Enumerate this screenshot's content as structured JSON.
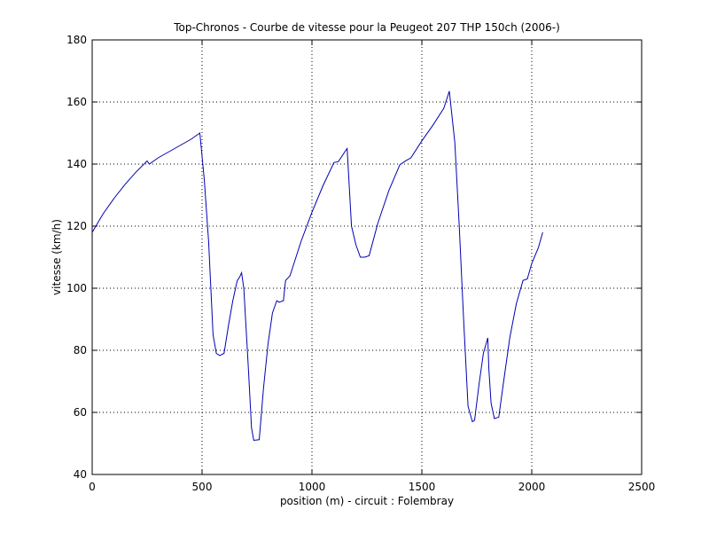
{
  "chart_data": {
    "type": "line",
    "title": "Top-Chronos - Courbe de vitesse pour la Peugeot 207 THP 150ch (2006-)",
    "xlabel": "position (m) - circuit : Folembray",
    "ylabel": "vitesse (km/h)",
    "xlim": [
      0,
      2500
    ],
    "ylim": [
      40,
      180
    ],
    "xticks": [
      0,
      500,
      1000,
      1500,
      2000,
      2500
    ],
    "yticks": [
      40,
      60,
      80,
      100,
      120,
      140,
      160,
      180
    ],
    "grid": true,
    "line_color": "#0000b3",
    "series": [
      {
        "x": [
          0,
          50,
          100,
          150,
          200,
          250,
          260,
          300,
          350,
          400,
          450,
          490,
          510,
          530,
          550,
          565,
          580,
          600,
          620,
          640,
          660,
          670,
          680,
          690,
          710,
          725,
          735,
          760,
          780,
          800,
          820,
          840,
          850,
          870,
          880,
          900,
          950,
          1000,
          1050,
          1100,
          1120,
          1150,
          1160,
          1180,
          1200,
          1220,
          1240,
          1260,
          1300,
          1350,
          1400,
          1430,
          1450,
          1500,
          1550,
          1600,
          1625,
          1650,
          1670,
          1690,
          1710,
          1730,
          1740,
          1760,
          1780,
          1800,
          1805,
          1815,
          1830,
          1850,
          1870,
          1900,
          1930,
          1960,
          1980,
          2000,
          2030,
          2050
        ],
        "y": [
          118,
          124,
          129,
          133.5,
          137.5,
          141,
          140,
          142,
          144,
          146,
          148,
          150,
          135,
          115,
          85,
          79,
          78.3,
          79,
          88,
          96,
          102.5,
          103.5,
          105,
          100,
          75,
          55,
          51,
          51.2,
          68,
          82,
          92,
          96,
          95.5,
          96,
          102.5,
          104,
          115,
          124.5,
          133,
          140.5,
          140.8,
          144,
          145,
          120,
          114,
          110,
          110,
          110.5,
          121,
          131.5,
          139.8,
          141.2,
          142,
          147.5,
          152.5,
          158,
          163.5,
          147,
          120,
          90,
          62,
          57,
          57.5,
          69,
          79,
          84,
          74,
          63,
          58,
          58.5,
          69,
          84,
          95,
          102.5,
          103,
          108,
          113,
          118
        ]
      }
    ]
  }
}
